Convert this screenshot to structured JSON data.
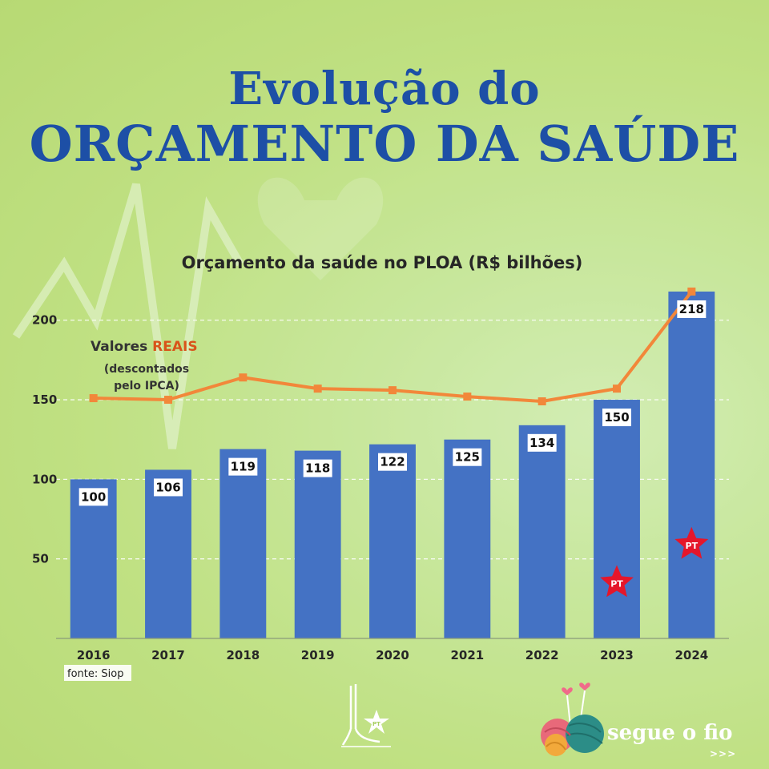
{
  "header": {
    "title_line1": "Evolução do",
    "title_line2": "ORÇAMENTO DA SAÚDE"
  },
  "chart_data": {
    "type": "bar",
    "title": "Orçamento da saúde no PLOA (R$ bilhões)",
    "categories": [
      "2016",
      "2017",
      "2018",
      "2019",
      "2020",
      "2021",
      "2022",
      "2023",
      "2024"
    ],
    "series": [
      {
        "values": [
          100,
          106,
          119,
          118,
          122,
          125,
          134,
          150,
          218
        ],
        "color": "#4472c4"
      },
      {
        "type": "line",
        "values": [
          151,
          150,
          164,
          157,
          156,
          152,
          149,
          157,
          218
        ],
        "color": "#f2873a"
      }
    ],
    "ylim": [
      0,
      220
    ],
    "yticks": [
      50,
      100,
      150,
      200
    ],
    "grid": true,
    "annotation": {
      "line1": "Valores ",
      "highlight": "REAIS",
      "line2": "(descontados",
      "line3": "pelo IPCA)"
    },
    "source": "fonte: Siop",
    "markers": [
      {
        "category": "2023",
        "value": 35,
        "label": "PT"
      },
      {
        "category": "2024",
        "value": 59,
        "label": "PT"
      }
    ]
  },
  "footer": {
    "brand_text": "segue o fio",
    "brand_arrows": ">>>",
    "left_logo_label": "PT"
  },
  "colors": {
    "title": "#1d4fa6",
    "bar": "#4472c4",
    "line": "#f2873a",
    "star": "#e5162a",
    "background": "#c9e89f"
  }
}
